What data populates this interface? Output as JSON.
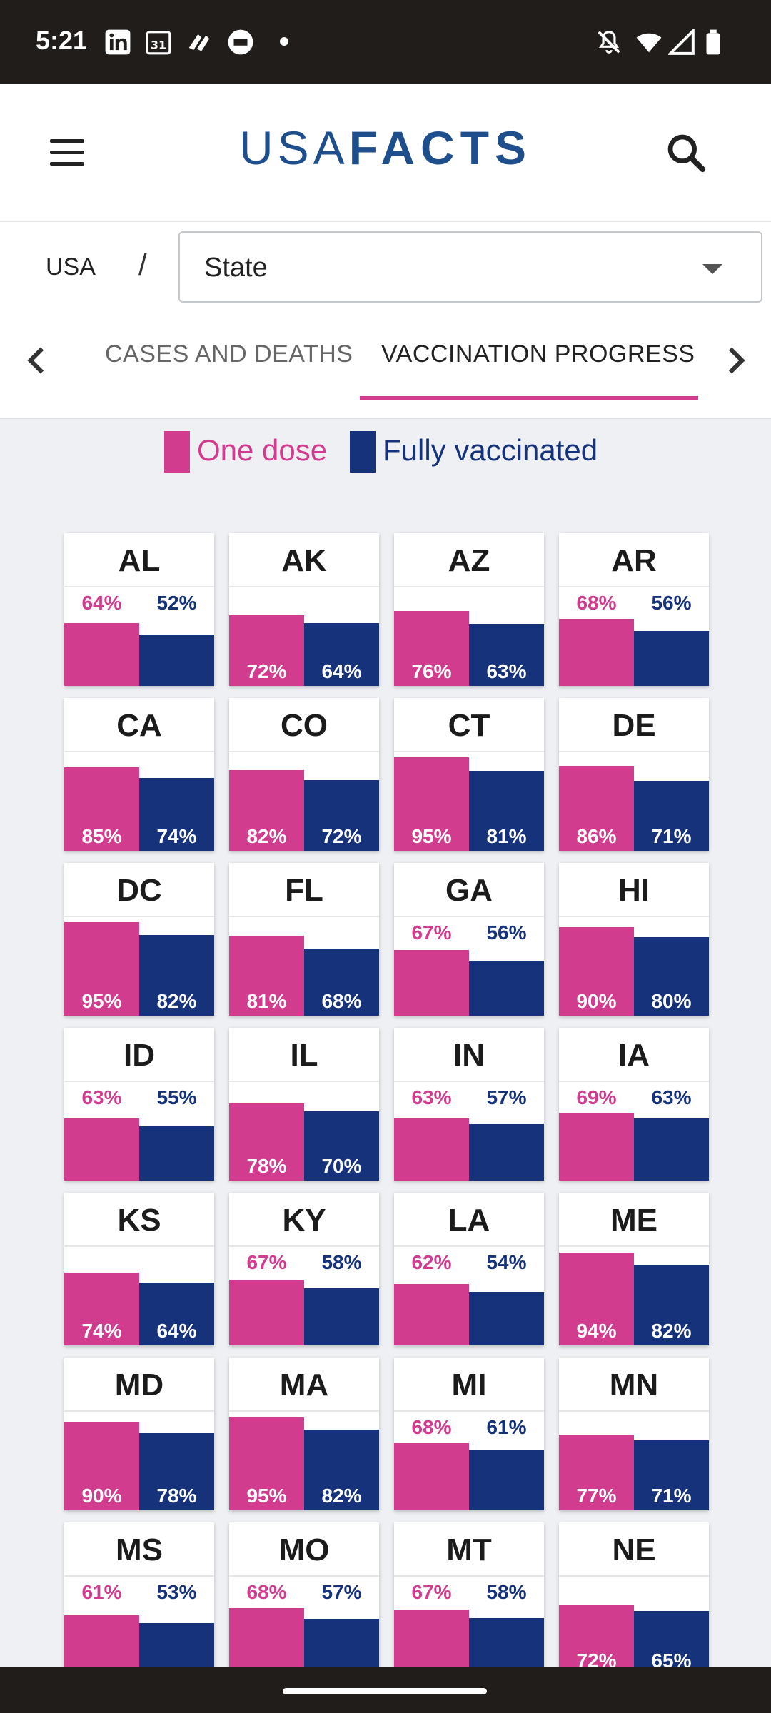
{
  "status_bar": {
    "time": "5:21",
    "left_icons": [
      "linkedin-icon",
      "calendar-icon",
      "app-icon",
      "amex-icon"
    ],
    "right_icons": [
      "mute-icon",
      "wifi-icon",
      "signal-icon",
      "battery-icon"
    ]
  },
  "header": {
    "logo_part1": "USA",
    "logo_part2": "FACTS"
  },
  "breadcrumb": {
    "root": "USA",
    "separator": "/",
    "select_value": "State"
  },
  "tabs": [
    {
      "label": "CASES AND DEATHS",
      "active": false
    },
    {
      "label": "VACCINATION PROGRESS",
      "active": true
    }
  ],
  "legend": {
    "one_dose": "One dose",
    "fully_vaccinated": "Fully vaccinated",
    "one_dose_color": "#d23c8e",
    "fully_color": "#15327a"
  },
  "states": [
    {
      "abbr": "AL",
      "one": 64,
      "full": 52
    },
    {
      "abbr": "AK",
      "one": 72,
      "full": 64
    },
    {
      "abbr": "AZ",
      "one": 76,
      "full": 63
    },
    {
      "abbr": "AR",
      "one": 68,
      "full": 56
    },
    {
      "abbr": "CA",
      "one": 85,
      "full": 74
    },
    {
      "abbr": "CO",
      "one": 82,
      "full": 72
    },
    {
      "abbr": "CT",
      "one": 95,
      "full": 81
    },
    {
      "abbr": "DE",
      "one": 86,
      "full": 71
    },
    {
      "abbr": "DC",
      "one": 95,
      "full": 82
    },
    {
      "abbr": "FL",
      "one": 81,
      "full": 68
    },
    {
      "abbr": "GA",
      "one": 67,
      "full": 56
    },
    {
      "abbr": "HI",
      "one": 90,
      "full": 80
    },
    {
      "abbr": "ID",
      "one": 63,
      "full": 55
    },
    {
      "abbr": "IL",
      "one": 78,
      "full": 70
    },
    {
      "abbr": "IN",
      "one": 63,
      "full": 57
    },
    {
      "abbr": "IA",
      "one": 69,
      "full": 63
    },
    {
      "abbr": "KS",
      "one": 74,
      "full": 64
    },
    {
      "abbr": "KY",
      "one": 67,
      "full": 58
    },
    {
      "abbr": "LA",
      "one": 62,
      "full": 54
    },
    {
      "abbr": "ME",
      "one": 94,
      "full": 82
    },
    {
      "abbr": "MD",
      "one": 90,
      "full": 78
    },
    {
      "abbr": "MA",
      "one": 95,
      "full": 82
    },
    {
      "abbr": "MI",
      "one": 68,
      "full": 61
    },
    {
      "abbr": "MN",
      "one": 77,
      "full": 71
    },
    {
      "abbr": "MS",
      "one": 61,
      "full": 53
    },
    {
      "abbr": "MO",
      "one": 68,
      "full": 57
    },
    {
      "abbr": "MT",
      "one": 67,
      "full": 58
    },
    {
      "abbr": "NE",
      "one": 72,
      "full": 65
    }
  ]
}
